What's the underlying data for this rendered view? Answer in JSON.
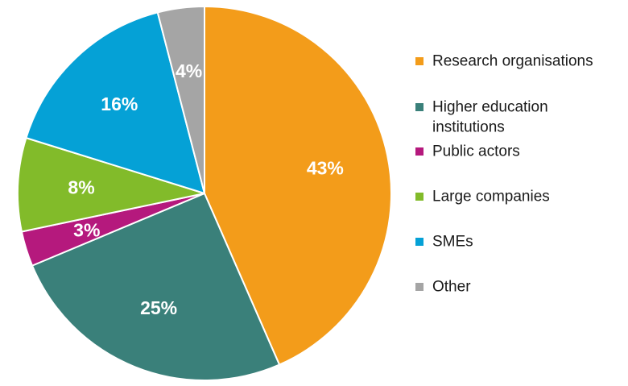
{
  "chart_data": {
    "type": "pie",
    "title": "",
    "start_angle_deg": 0,
    "direction": "clockwise",
    "legend_position": "right",
    "slices": [
      {
        "name": "Research organisations",
        "value": 43,
        "label": "43%",
        "color": "#F39C1A"
      },
      {
        "name": "Higher education institutions",
        "value": 25,
        "label": "25%",
        "color": "#3A807A"
      },
      {
        "name": "Public actors",
        "value": 3,
        "label": "3%",
        "color": "#B5197D"
      },
      {
        "name": "Large companies",
        "value": 8,
        "label": "8%",
        "color": "#82BB2A"
      },
      {
        "name": "SMEs",
        "value": 16,
        "label": "16%",
        "color": "#05A1D6"
      },
      {
        "name": "Other",
        "value": 4,
        "label": "4%",
        "color": "#A5A5A5"
      }
    ]
  },
  "legend": {
    "items": [
      {
        "lines": [
          "Research organisations"
        ],
        "color": "#F39C1A"
      },
      {
        "lines": [
          "Higher education",
          "institutions"
        ],
        "color": "#3A807A"
      },
      {
        "lines": [
          "Public actors"
        ],
        "color": "#B5197D"
      },
      {
        "lines": [
          "Large companies"
        ],
        "color": "#82BB2A"
      },
      {
        "lines": [
          "SMEs"
        ],
        "color": "#05A1D6"
      },
      {
        "lines": [
          "Other"
        ],
        "color": "#A5A5A5"
      }
    ]
  }
}
